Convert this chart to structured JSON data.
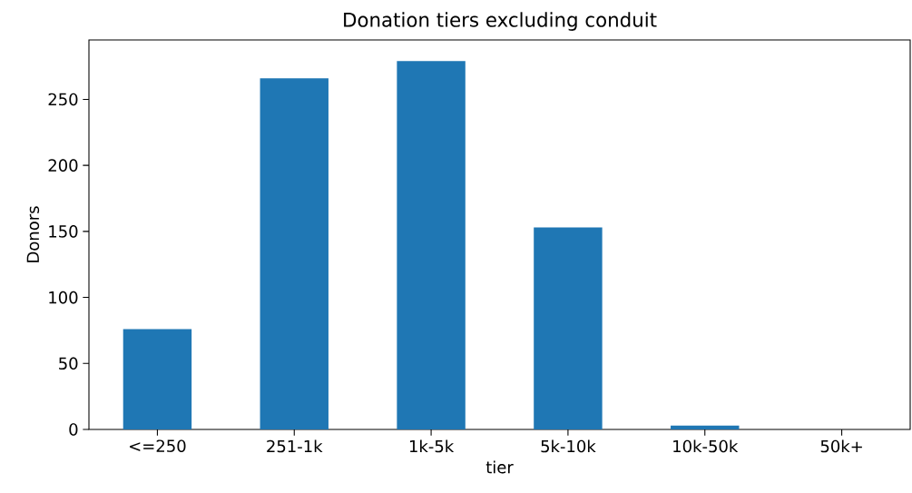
{
  "chart_data": {
    "type": "bar",
    "title": "Donation tiers excluding conduit",
    "xlabel": "tier",
    "ylabel": "Donors",
    "categories": [
      "<=250",
      "251-1k",
      "1k-5k",
      "5k-10k",
      "10k-50k",
      "50k+"
    ],
    "values": [
      76,
      266,
      279,
      153,
      3,
      0
    ],
    "color": "#1f77b4",
    "ylim": [
      0,
      295
    ],
    "yticks": [
      0,
      50,
      100,
      150,
      200,
      250
    ],
    "grid": false
  }
}
